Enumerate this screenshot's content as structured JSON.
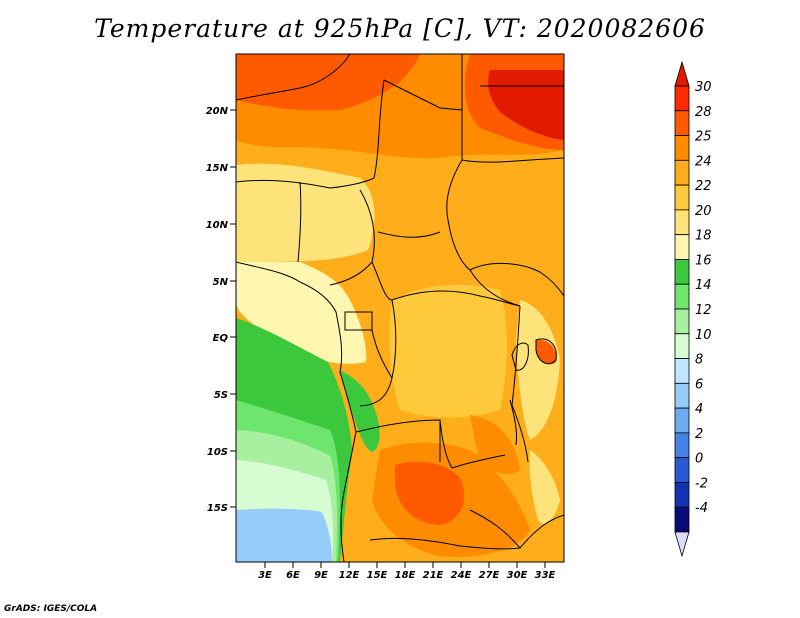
{
  "title": "Temperature at 925hPa [C], VT: 2020082606",
  "credit": "GrADS: IGES/COLA",
  "map": {
    "lon_range": [
      0,
      34
    ],
    "lat_range": [
      -20,
      24
    ],
    "lon_ticks": [
      "3E",
      "6E",
      "9E",
      "12E",
      "15E",
      "18E",
      "21E",
      "24E",
      "27E",
      "30E",
      "33E"
    ],
    "lat_ticks": [
      "20N",
      "15N",
      "10N",
      "5N",
      "EQ",
      "5S",
      "10S",
      "15S"
    ]
  },
  "colorbar": {
    "labels": [
      "30",
      "28",
      "25",
      "24",
      "22",
      "20",
      "18",
      "16",
      "14",
      "12",
      "10",
      "8",
      "6",
      "4",
      "2",
      "0",
      "-2",
      "-4"
    ],
    "colors": [
      "#ff2a00",
      "#ff5a00",
      "#ff8c00",
      "#ffad1a",
      "#ffc93c",
      "#fee37a",
      "#fff7b0",
      "#3cc83c",
      "#6ee66e",
      "#a6f0a0",
      "#d8fcd2",
      "#bfe6ff",
      "#96cdfa",
      "#6eaaf0",
      "#4682e6",
      "#2a5ad2",
      "#1432b4",
      "#0a0a78"
    ],
    "top_color": "#e11a00",
    "bottom_color": "#dcdcff"
  }
}
